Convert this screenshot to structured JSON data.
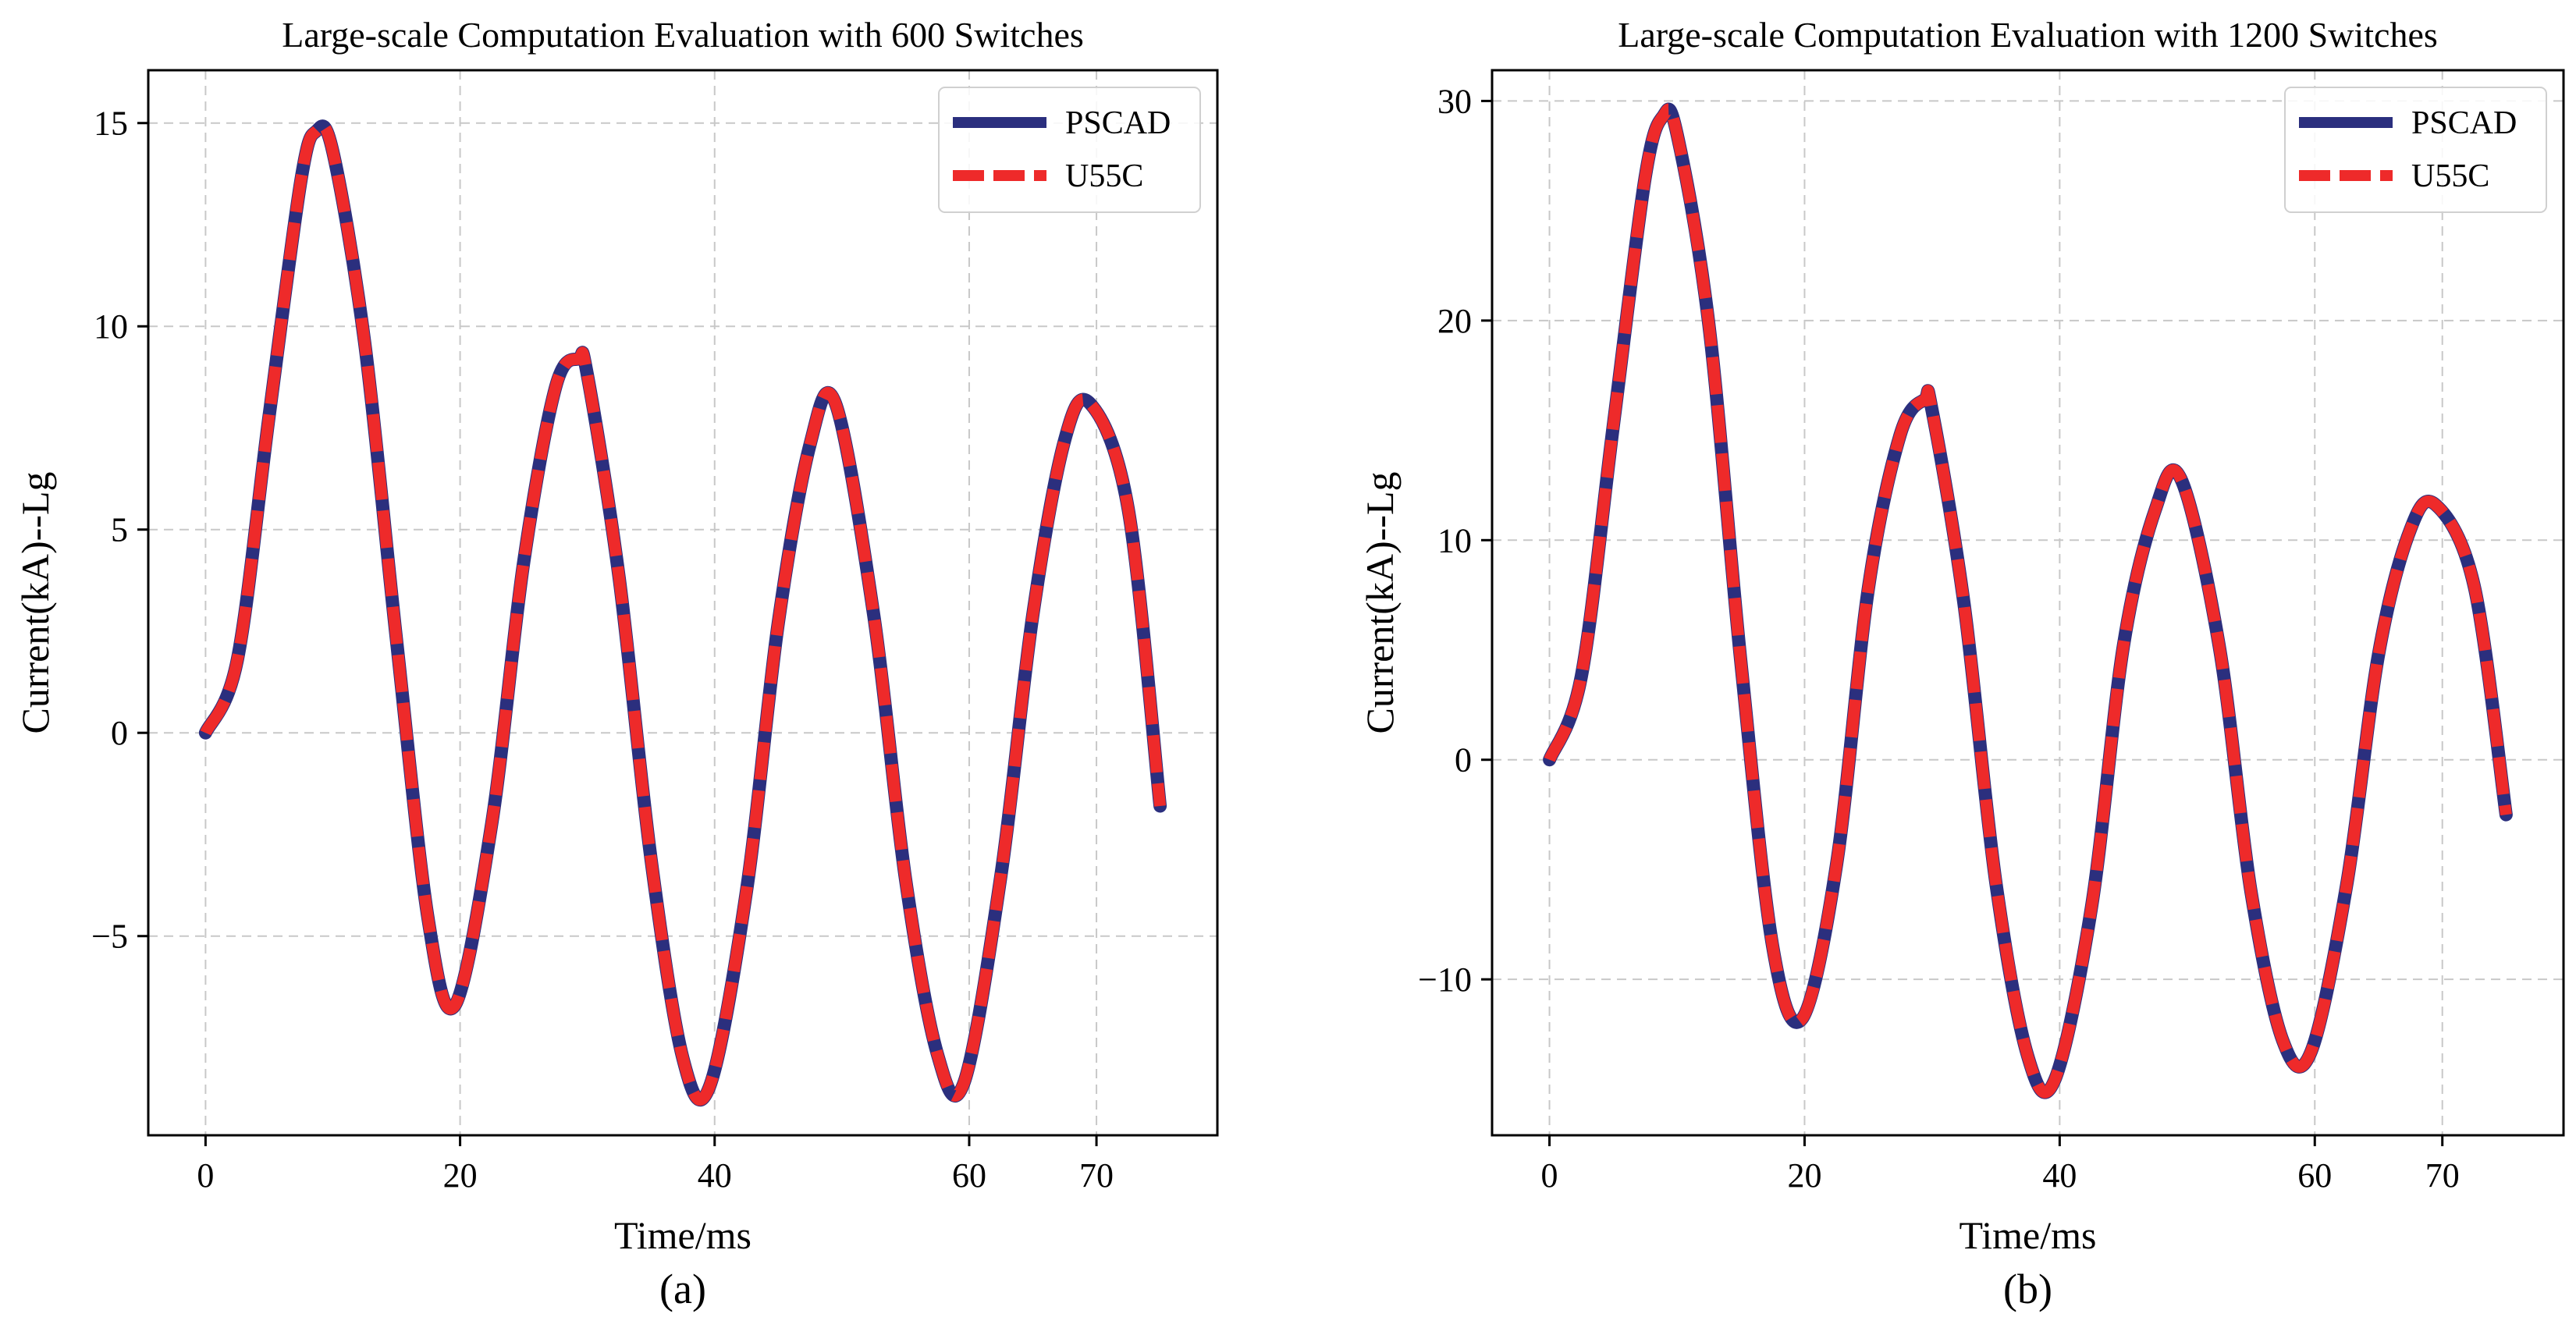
{
  "chart_data": [
    {
      "type": "line",
      "panel": "(a)",
      "title": "Large-scale Computation Evaluation with 600 Switches",
      "xlabel": "Time/ms",
      "ylabel": "Current(kA)--Lg",
      "caption": "(a)",
      "xlim": [
        -4.5,
        79.5
      ],
      "ylim": [
        -9.9,
        16.3
      ],
      "xticks": [
        0,
        20,
        40,
        60,
        70
      ],
      "xtick_labels": [
        "0",
        "20",
        "40",
        "60",
        "70"
      ],
      "yticks": [
        -5,
        0,
        5,
        10,
        15
      ],
      "ytick_labels": [
        "−5",
        "0",
        "5",
        "10",
        "15"
      ],
      "grid": true,
      "legend_position": "top-right",
      "x": [
        0,
        2.5,
        5,
        7.5,
        8.7,
        10,
        12.5,
        15,
        17.5,
        19.6,
        22.5,
        25,
        27.5,
        29.3,
        30,
        32.5,
        35,
        37.5,
        39.6,
        42.5,
        45,
        47.5,
        49.5,
        52.5,
        55,
        57.5,
        59.6,
        62.5,
        65,
        67.5,
        69.5,
        72.5,
        75
      ],
      "series": [
        {
          "name": "PSCAD",
          "color": "#2b2f7e",
          "style": "solid",
          "values": [
            0,
            1.8,
            7.8,
            13.6,
            14.8,
            14.3,
            9.6,
            2.3,
            -4.6,
            -6.7,
            -2.2,
            4.2,
            8.5,
            9.2,
            8.8,
            3.8,
            -3.1,
            -8.0,
            -8.7,
            -3.9,
            2.7,
            7.1,
            8.1,
            2.9,
            -3.6,
            -7.9,
            -8.6,
            -3.5,
            2.9,
            7.2,
            8.1,
            5.5,
            -1.8
          ]
        },
        {
          "name": "U55C",
          "color": "#ee2a2a",
          "style": "dashed",
          "values": [
            0,
            1.8,
            7.8,
            13.6,
            14.8,
            14.3,
            9.6,
            2.3,
            -4.6,
            -6.7,
            -2.2,
            4.2,
            8.5,
            9.2,
            8.8,
            3.8,
            -3.1,
            -8.0,
            -8.7,
            -3.9,
            2.7,
            7.1,
            8.1,
            2.9,
            -3.6,
            -7.9,
            -8.6,
            -3.5,
            2.9,
            7.2,
            8.1,
            5.5,
            -1.8
          ]
        }
      ]
    },
    {
      "type": "line",
      "panel": "(b)",
      "title": "Large-scale Computation Evaluation with 1200 Switches",
      "xlabel": "Time/ms",
      "ylabel": "Current(kA)--Lg",
      "caption": "(b)",
      "xlim": [
        -4.5,
        79.5
      ],
      "ylim": [
        -17.1,
        31.4
      ],
      "xticks": [
        0,
        20,
        40,
        60,
        70
      ],
      "xtick_labels": [
        "0",
        "20",
        "40",
        "60",
        "70"
      ],
      "yticks": [
        -10,
        0,
        10,
        20,
        30
      ],
      "ytick_labels": [
        "−10",
        "0",
        "10",
        "20",
        "30"
      ],
      "grid": true,
      "legend_position": "top-right",
      "x": [
        0,
        2.5,
        5,
        7.5,
        8.9,
        10,
        12.5,
        15,
        17.5,
        19.8,
        22.5,
        25,
        27.5,
        29.4,
        30,
        32.5,
        35,
        37.5,
        39.6,
        42.5,
        45,
        47.5,
        49.5,
        52.5,
        55,
        57.5,
        59.7,
        62.5,
        65,
        67.5,
        69.5,
        72.5,
        75
      ],
      "series": [
        {
          "name": "PSCAD",
          "color": "#2b2f7e",
          "style": "solid",
          "values": [
            0,
            3.8,
            15.2,
            26.5,
            29.3,
            28.5,
            19.8,
            4.5,
            -8.5,
            -11.8,
            -4.8,
            7.8,
            14.8,
            16.4,
            15.9,
            7.1,
            -5.6,
            -13.5,
            -14.6,
            -6.7,
            5.2,
            11.4,
            12.8,
            5.2,
            -6.0,
            -12.8,
            -13.3,
            -5.7,
            4.8,
            10.5,
            11.6,
            7.9,
            -2.5
          ]
        },
        {
          "name": "U55C",
          "color": "#ee2a2a",
          "style": "dashed",
          "values": [
            0,
            3.8,
            15.2,
            26.5,
            29.3,
            28.5,
            19.8,
            4.5,
            -8.5,
            -11.8,
            -4.8,
            7.8,
            14.8,
            16.4,
            15.9,
            7.1,
            -5.6,
            -13.5,
            -14.6,
            -6.7,
            5.2,
            11.4,
            12.8,
            5.2,
            -6.0,
            -12.8,
            -13.3,
            -5.7,
            4.8,
            10.5,
            11.6,
            7.9,
            -2.5
          ]
        }
      ]
    }
  ]
}
